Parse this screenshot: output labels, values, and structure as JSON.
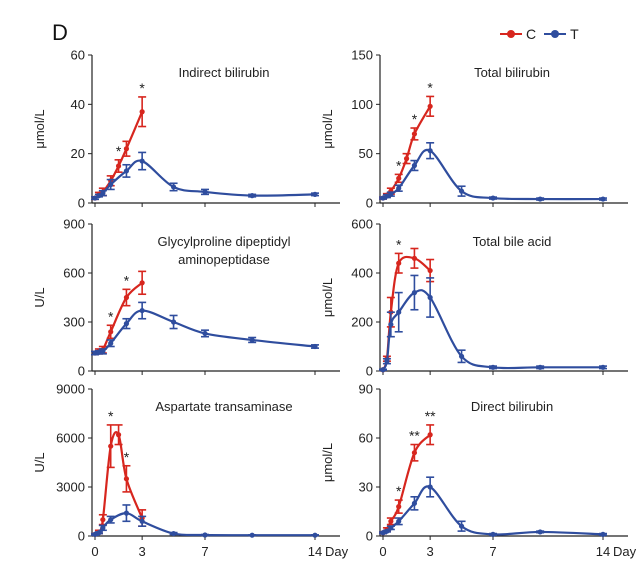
{
  "panel_label": "D",
  "legend": [
    {
      "name": "C",
      "color": "#d7261e"
    },
    {
      "name": "T",
      "color": "#2f4d9e"
    }
  ],
  "colors": {
    "C": "#d7261e",
    "T": "#2f4d9e"
  },
  "chart_data": [
    {
      "type": "line",
      "title": "Indirect bilirubin",
      "ylabel": "μmol/L",
      "ylim": [
        0,
        60
      ],
      "yticks": [
        0,
        20,
        40,
        60
      ],
      "xlim": [
        0,
        14
      ],
      "xticks": [
        "0",
        "3",
        "7",
        "14"
      ],
      "series": [
        {
          "name": "C",
          "x": [
            0,
            0.25,
            0.5,
            1,
            1.5,
            2,
            3
          ],
          "y": [
            2,
            3.5,
            4.5,
            9,
            15,
            22,
            37
          ],
          "err": [
            0.5,
            0.8,
            1.5,
            2,
            2.5,
            3,
            6
          ]
        },
        {
          "name": "T",
          "x": [
            0,
            0.25,
            0.5,
            1,
            2,
            3,
            5,
            7,
            10,
            14
          ],
          "y": [
            2,
            3,
            4,
            7.5,
            13,
            17,
            6.5,
            4.5,
            3,
            3.5
          ],
          "err": [
            0.5,
            0.5,
            1,
            2,
            2.5,
            3.5,
            1.5,
            1,
            0.5,
            0.5
          ]
        }
      ],
      "annotations": [
        {
          "x": 1.5,
          "text": "*"
        },
        {
          "x": 3,
          "text": "*"
        }
      ]
    },
    {
      "type": "line",
      "title": "Total bilirubin",
      "ylabel": "μmol/L",
      "ylim": [
        0,
        150
      ],
      "yticks": [
        0,
        50,
        100,
        150
      ],
      "xlim": [
        0,
        14
      ],
      "xticks": [
        "0",
        "3",
        "7",
        "14"
      ],
      "series": [
        {
          "name": "C",
          "x": [
            0,
            0.25,
            0.5,
            1,
            1.5,
            2,
            3
          ],
          "y": [
            5,
            8,
            12,
            25,
            45,
            70,
            98
          ],
          "err": [
            1,
            1.5,
            3,
            4,
            5,
            6,
            10
          ]
        },
        {
          "name": "T",
          "x": [
            0,
            0.25,
            0.5,
            1,
            2,
            3,
            5,
            7,
            10,
            14
          ],
          "y": [
            5,
            7,
            9,
            15,
            38,
            53,
            12,
            5,
            4,
            4
          ],
          "err": [
            1,
            1.5,
            2,
            3,
            5,
            8,
            5,
            1,
            1,
            1
          ]
        }
      ],
      "annotations": [
        {
          "x": 1,
          "text": "*"
        },
        {
          "x": 2,
          "text": "*"
        },
        {
          "x": 3,
          "text": "*"
        }
      ]
    },
    {
      "type": "line",
      "title": "Glycylproline dipeptidyl",
      "subtitle": "aminopeptidase",
      "ylabel": "U/L",
      "ylim": [
        0,
        900
      ],
      "yticks": [
        0,
        300,
        600,
        900
      ],
      "xlim": [
        0,
        14
      ],
      "xticks": [
        "0",
        "3",
        "7",
        "14"
      ],
      "series": [
        {
          "name": "C",
          "x": [
            0,
            0.25,
            0.5,
            1,
            2,
            3
          ],
          "y": [
            110,
            120,
            130,
            240,
            450,
            540
          ],
          "err": [
            10,
            15,
            20,
            40,
            50,
            70
          ]
        },
        {
          "name": "T",
          "x": [
            0,
            0.25,
            0.5,
            1,
            2,
            3,
            5,
            7,
            10,
            14
          ],
          "y": [
            110,
            115,
            120,
            170,
            290,
            370,
            300,
            230,
            190,
            150
          ],
          "err": [
            10,
            10,
            15,
            20,
            30,
            50,
            40,
            20,
            15,
            10
          ]
        }
      ],
      "annotations": [
        {
          "x": 1,
          "text": "*"
        },
        {
          "x": 2,
          "text": "*"
        }
      ]
    },
    {
      "type": "line",
      "title": "Total bile acid",
      "ylabel": "μmol/L",
      "ylim": [
        0,
        600
      ],
      "yticks": [
        0,
        200,
        400,
        600
      ],
      "xlim": [
        0,
        14
      ],
      "xticks": [
        "0",
        "3",
        "7",
        "14"
      ],
      "series": [
        {
          "name": "C",
          "x": [
            0,
            0.25,
            0.5,
            1,
            2,
            3
          ],
          "y": [
            5,
            50,
            240,
            440,
            460,
            410
          ],
          "err": [
            2,
            10,
            60,
            40,
            40,
            45
          ]
        },
        {
          "name": "T",
          "x": [
            0,
            0.25,
            0.5,
            1,
            2,
            3,
            5,
            7,
            10,
            14
          ],
          "y": [
            5,
            40,
            190,
            240,
            320,
            300,
            60,
            15,
            15,
            15
          ],
          "err": [
            2,
            10,
            50,
            80,
            70,
            80,
            25,
            5,
            5,
            5
          ]
        }
      ],
      "annotations": [
        {
          "x": 1,
          "text": "*"
        }
      ]
    },
    {
      "type": "line",
      "title": "Aspartate transaminase",
      "ylabel": "U/L",
      "ylim": [
        0,
        9000
      ],
      "yticks": [
        0,
        3000,
        6000,
        9000
      ],
      "xlim": [
        0,
        14
      ],
      "xticks": [
        "0",
        "3",
        "7",
        "14"
      ],
      "series": [
        {
          "name": "C",
          "x": [
            0,
            0.25,
            0.5,
            1,
            1.5,
            2,
            3
          ],
          "y": [
            100,
            250,
            1000,
            5500,
            6200,
            3500,
            1100
          ],
          "err": [
            50,
            100,
            300,
            1300,
            600,
            800,
            500
          ]
        },
        {
          "name": "T",
          "x": [
            0,
            0.25,
            0.5,
            1,
            2,
            3,
            5,
            7,
            10,
            14
          ],
          "y": [
            100,
            200,
            500,
            1000,
            1400,
            900,
            150,
            60,
            50,
            50
          ],
          "err": [
            50,
            50,
            150,
            200,
            500,
            300,
            60,
            30,
            20,
            20
          ]
        }
      ],
      "annotations": [
        {
          "x": 1,
          "text": "*"
        },
        {
          "x": 2,
          "text": "*"
        }
      ]
    },
    {
      "type": "line",
      "title": "Direct bilirubin",
      "ylabel": "μmol/L",
      "ylim": [
        0,
        90
      ],
      "yticks": [
        0,
        30,
        60,
        90
      ],
      "xlim": [
        0,
        14
      ],
      "xticks": [
        "0",
        "3",
        "7",
        "14"
      ],
      "series": [
        {
          "name": "C",
          "x": [
            0,
            0.25,
            0.5,
            1,
            2,
            3
          ],
          "y": [
            2,
            4,
            9,
            18,
            51,
            62
          ],
          "err": [
            0.5,
            1,
            2,
            4,
            5,
            6
          ]
        },
        {
          "name": "T",
          "x": [
            0,
            0.25,
            0.5,
            1,
            2,
            3,
            5,
            7,
            10,
            14
          ],
          "y": [
            2,
            3,
            5,
            9,
            20,
            30,
            6,
            1,
            2.5,
            1
          ],
          "err": [
            0.5,
            0.5,
            1,
            2,
            4,
            6,
            3,
            0.5,
            0.5,
            0.5
          ]
        }
      ],
      "annotations": [
        {
          "x": 1,
          "text": "*"
        },
        {
          "x": 2,
          "text": "**"
        },
        {
          "x": 3,
          "text": "**"
        }
      ]
    }
  ],
  "x_unit_label": "Day"
}
